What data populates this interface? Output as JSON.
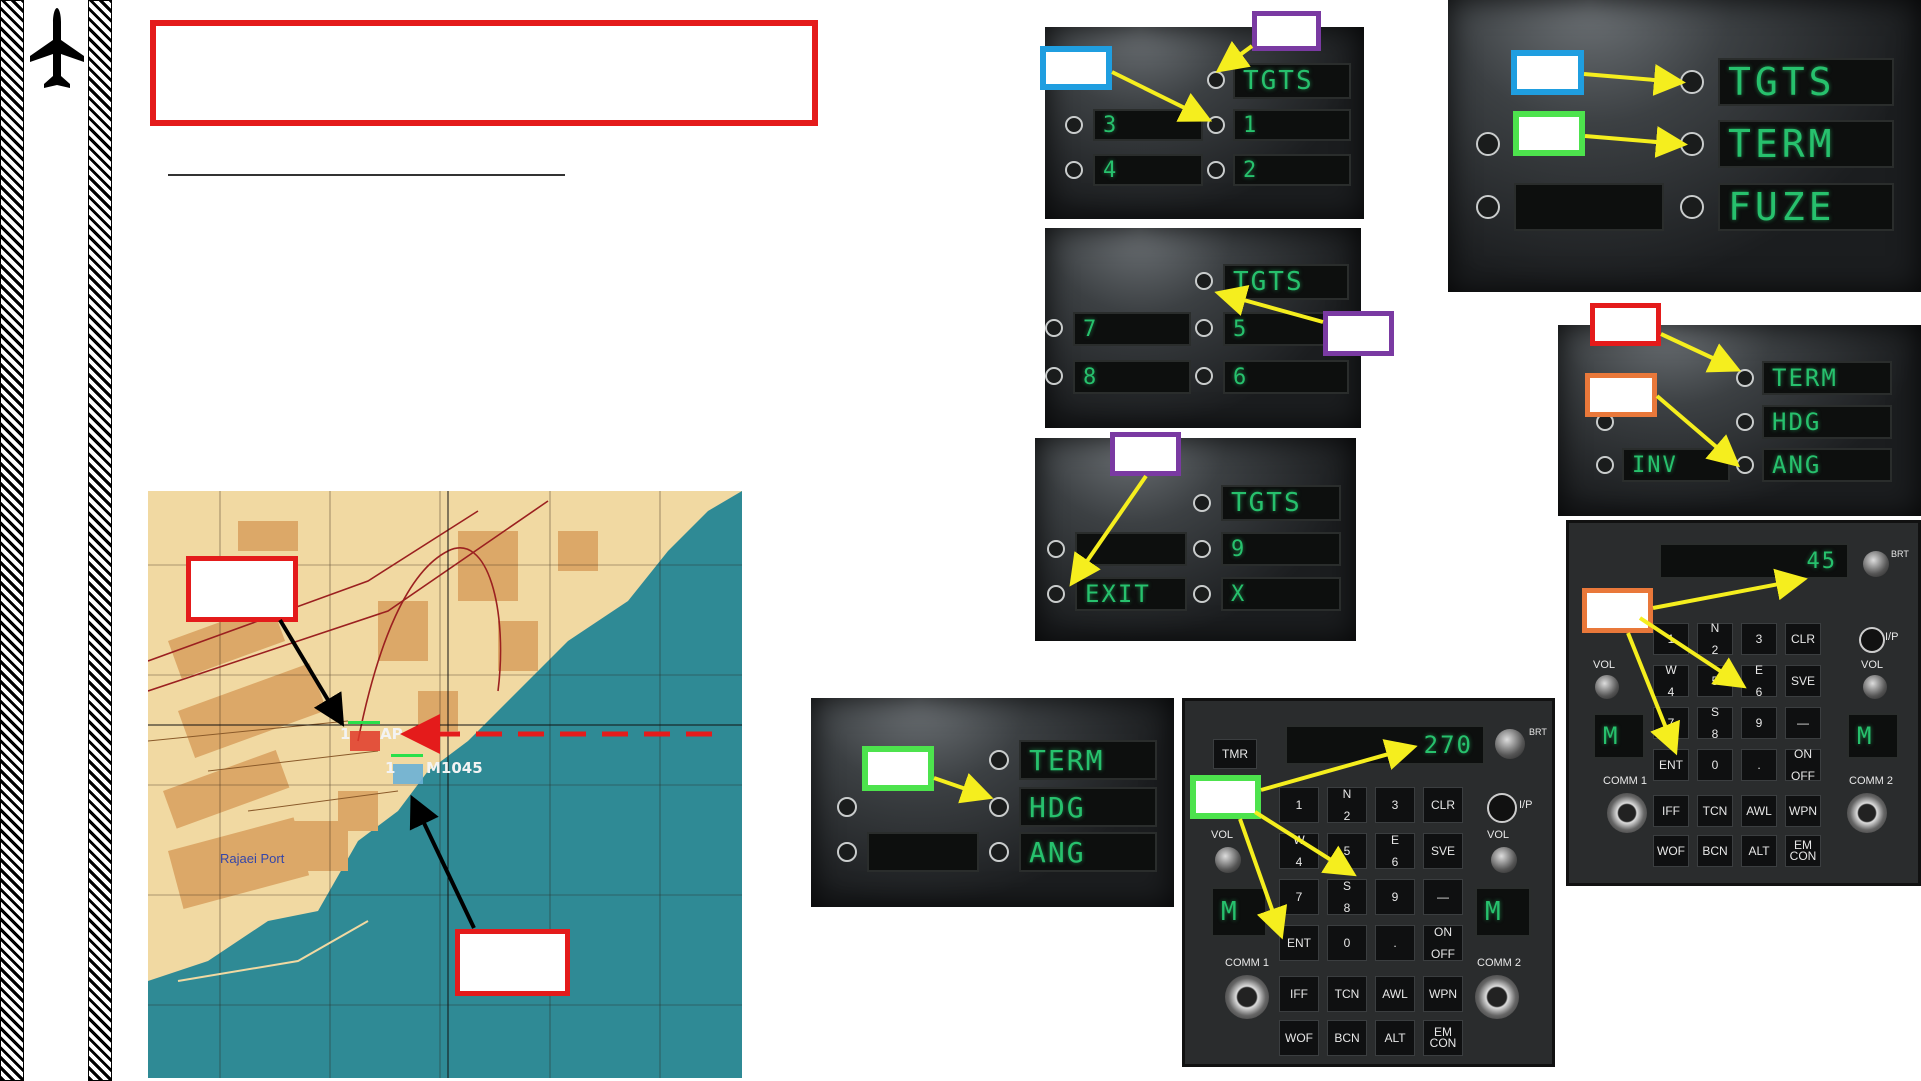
{
  "colors": {
    "callout_red": "#e41b1b",
    "callout_blue": "#1f9ee0",
    "callout_purple": "#7a3aa2",
    "callout_green": "#4de34d",
    "callout_orange": "#e9783a",
    "arrow_yellow": "#f5ee1e",
    "lcd_green": "#27c16d",
    "map_sea": "#2f8a95",
    "map_land": "#f1d9a2",
    "map_urban": "#dca868"
  },
  "sidebar": {
    "icon": "airplane-icon"
  },
  "map": {
    "place_label": "Rajaei Port",
    "target1_label": "AP",
    "target1_number": "1",
    "target2_label": "M1045",
    "target2_number": "1"
  },
  "ddi_tgts_page1": {
    "options": [
      "TGTS",
      "1",
      "2"
    ],
    "left_options": [
      "3",
      "4"
    ]
  },
  "ddi_tgts_page2": {
    "options": [
      "TGTS",
      "5",
      "6"
    ],
    "left_options": [
      "7",
      "8"
    ]
  },
  "ddi_tgts_page3": {
    "options": [
      "TGTS",
      "9",
      "X"
    ],
    "left_options": [
      "EXIT"
    ]
  },
  "ddi_main": {
    "options": [
      "TGTS",
      "TERM",
      "FUZE"
    ]
  },
  "ddi_term_inv": {
    "options": [
      "TERM",
      "HDG",
      "ANG"
    ],
    "left_options": [
      "INV"
    ]
  },
  "ddi_term_hdg": {
    "options": [
      "TERM",
      "HDG",
      "ANG"
    ]
  },
  "ufc_large": {
    "display": "270",
    "keys": [
      {
        "main": "1",
        "sub": ""
      },
      {
        "main": "N",
        "sub": "2"
      },
      {
        "main": "3",
        "sub": ""
      },
      {
        "main": "CLR",
        "sub": ""
      },
      {
        "main": "W",
        "sub": "4"
      },
      {
        "main": "5",
        "sub": ""
      },
      {
        "main": "E",
        "sub": "6"
      },
      {
        "main": "SVE",
        "sub": ""
      },
      {
        "main": "7",
        "sub": ""
      },
      {
        "main": "S",
        "sub": "8"
      },
      {
        "main": "9",
        "sub": ""
      },
      {
        "main": "—",
        "sub": ""
      },
      {
        "main": "ENT",
        "sub": ""
      },
      {
        "main": "0",
        "sub": ""
      },
      {
        "main": ".",
        "sub": ""
      },
      {
        "main": "ON",
        "sub": "OFF"
      }
    ],
    "bottom_keys": [
      {
        "main": "IFF",
        "sub": ""
      },
      {
        "main": "TCN",
        "sub": ""
      },
      {
        "main": "AWL",
        "sub": ""
      },
      {
        "main": "WPN",
        "sub": ""
      },
      {
        "main": "WOF",
        "sub": ""
      },
      {
        "main": "BCN",
        "sub": ""
      },
      {
        "main": "ALT",
        "sub": ""
      },
      {
        "main": "EM",
        "sub": "CON"
      }
    ],
    "labels": {
      "tmr": "TMR",
      "ip": "I/P",
      "vol": "VOL",
      "comm1": "COMM 1",
      "comm2": "COMM 2",
      "m": "M",
      "brt": "BRT"
    }
  },
  "ufc_small": {
    "display": "45",
    "keys": [
      {
        "main": "1",
        "sub": ""
      },
      {
        "main": "N",
        "sub": "2"
      },
      {
        "main": "3",
        "sub": ""
      },
      {
        "main": "CLR",
        "sub": ""
      },
      {
        "main": "W",
        "sub": "4"
      },
      {
        "main": "5",
        "sub": ""
      },
      {
        "main": "E",
        "sub": "6"
      },
      {
        "main": "SVE",
        "sub": ""
      },
      {
        "main": "7",
        "sub": ""
      },
      {
        "main": "S",
        "sub": "8"
      },
      {
        "main": "9",
        "sub": ""
      },
      {
        "main": "—",
        "sub": ""
      },
      {
        "main": "ENT",
        "sub": ""
      },
      {
        "main": "0",
        "sub": ""
      },
      {
        "main": ".",
        "sub": ""
      },
      {
        "main": "ON",
        "sub": "OFF"
      }
    ],
    "bottom_keys": [
      {
        "main": "IFF",
        "sub": ""
      },
      {
        "main": "TCN",
        "sub": ""
      },
      {
        "main": "AWL",
        "sub": ""
      },
      {
        "main": "WPN",
        "sub": ""
      },
      {
        "main": "WOF",
        "sub": ""
      },
      {
        "main": "BCN",
        "sub": ""
      },
      {
        "main": "ALT",
        "sub": ""
      },
      {
        "main": "EM",
        "sub": "CON"
      }
    ],
    "labels": {
      "ip": "I/P",
      "vol": "VOL",
      "comm1": "COMM 1",
      "comm2": "COMM 2",
      "m": "M",
      "brt": "BRT"
    }
  }
}
